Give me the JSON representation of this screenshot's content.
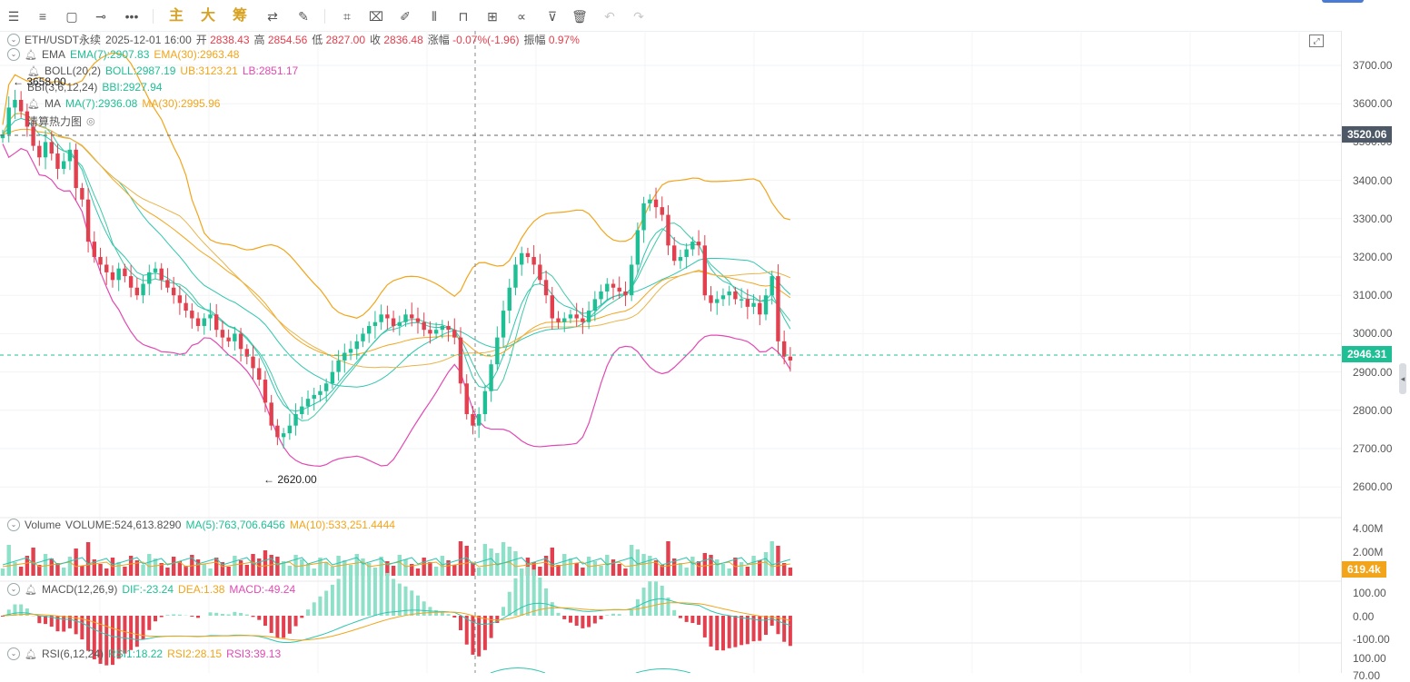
{
  "toolbar": {
    "icons": [
      "menu-icon",
      "list-icon",
      "rect-icon",
      "line-icon",
      "more-icon"
    ],
    "hanzi": [
      "主",
      "大",
      "筹"
    ],
    "tools": [
      "swap-icon",
      "pen-icon",
      "brush-icon",
      "tag-icon",
      "ruler-icon",
      "eraser-icon",
      "candles-icon",
      "lock-icon",
      "edit-icon",
      "magnet-icon",
      "filter-icon",
      "trash-icon",
      "undo-icon",
      "redo-icon"
    ]
  },
  "header": {
    "symbol": "ETH/USDT永续",
    "datetime": "2025-12-01 16:00",
    "open_label": "开",
    "open": "2838.43",
    "high_label": "高",
    "high": "2854.56",
    "low_label": "低",
    "low": "2827.00",
    "close_label": "收",
    "close": "2836.48",
    "change_label": "涨幅",
    "change": "-0.07%(-1.96)",
    "amp_label": "振幅",
    "amp": "0.97%"
  },
  "indicators": {
    "ema": {
      "name": "EMA",
      "ema7": "EMA(7):2907.83",
      "ema30": "EMA(30):2963.48"
    },
    "boll": {
      "name": "BOLL(20,2)",
      "boll": "BOLL:2987.19",
      "ub": "UB:3123.21",
      "lb": "LB:2851.17"
    },
    "bbi": {
      "name": "BBI(3,6,12,24)",
      "bbi": "BBI:2927.94"
    },
    "ma": {
      "name": "MA",
      "ma7": "MA(7):2936.08",
      "ma30": "MA(30):2995.96"
    },
    "heatmap": {
      "name": "清算热力图"
    }
  },
  "markers": {
    "high": "3658.00",
    "low": "2620.00"
  },
  "price_axis": {
    "ticks": [
      "3700.00",
      "3600.00",
      "3500.00",
      "3400.00",
      "3300.00",
      "3200.00",
      "3100.00",
      "3000.00",
      "2900.00",
      "2800.00",
      "2700.00",
      "2600.00"
    ],
    "crosshair_tag": "3520.06",
    "last_price_tag": "2946.31"
  },
  "volume": {
    "name": "Volume",
    "value": "VOLUME:524,613.8290",
    "ma5": "MA(5):763,706.6456",
    "ma10": "MA(10):533,251.4444",
    "ticks": [
      "4.00M",
      "2.00M"
    ],
    "tag": "619.4k"
  },
  "macd": {
    "name": "MACD(12,26,9)",
    "dif": "DIF:-23.24",
    "dea": "DEA:1.38",
    "macd": "MACD:-49.24",
    "ticks": [
      "100.00",
      "0.00",
      "-100.00"
    ]
  },
  "rsi": {
    "name": "RSI(6,12,24)",
    "rsi1": "RSI1:18.22",
    "rsi2": "RSI2:28.15",
    "rsi3": "RSI3:39.13",
    "ticks": [
      "100.00",
      "70.00"
    ]
  },
  "colors": {
    "up": "#1fbf95",
    "down": "#e2404e",
    "orange": "#f2a51b",
    "pink": "#e14ab3",
    "teal": "#2fc6b0"
  },
  "chart_data": {
    "type": "candlestick",
    "symbol": "ETH/USDT永续",
    "ylim": [
      2570,
      3740
    ],
    "closes": [
      3520,
      3590,
      3610,
      3580,
      3540,
      3490,
      3460,
      3500,
      3470,
      3430,
      3450,
      3480,
      3380,
      3350,
      3240,
      3200,
      3180,
      3160,
      3140,
      3170,
      3150,
      3120,
      3100,
      3130,
      3160,
      3170,
      3140,
      3120,
      3100,
      3080,
      3060,
      3040,
      3020,
      3040,
      3050,
      3010,
      2990,
      2980,
      3000,
      2960,
      2940,
      2910,
      2880,
      2820,
      2760,
      2730,
      2740,
      2760,
      2790,
      2810,
      2830,
      2840,
      2850,
      2870,
      2900,
      2930,
      2950,
      2960,
      2980,
      3000,
      3020,
      3030,
      3050,
      3040,
      3020,
      3030,
      3050,
      3040,
      3030,
      3010,
      3000,
      3010,
      3020,
      3010,
      2990,
      2870,
      2790,
      2760,
      2790,
      2850,
      2920,
      2990,
      3060,
      3120,
      3180,
      3210,
      3200,
      3180,
      3140,
      3100,
      3040,
      3030,
      3040,
      3050,
      3040,
      3030,
      3060,
      3090,
      3110,
      3130,
      3120,
      3110,
      3100,
      3180,
      3270,
      3340,
      3350,
      3330,
      3310,
      3230,
      3190,
      3200,
      3220,
      3240,
      3230,
      3100,
      3080,
      3090,
      3100,
      3110,
      3090,
      3090,
      3070,
      3080,
      3050,
      3100,
      3150,
      2980,
      2940,
      2930
    ]
  }
}
